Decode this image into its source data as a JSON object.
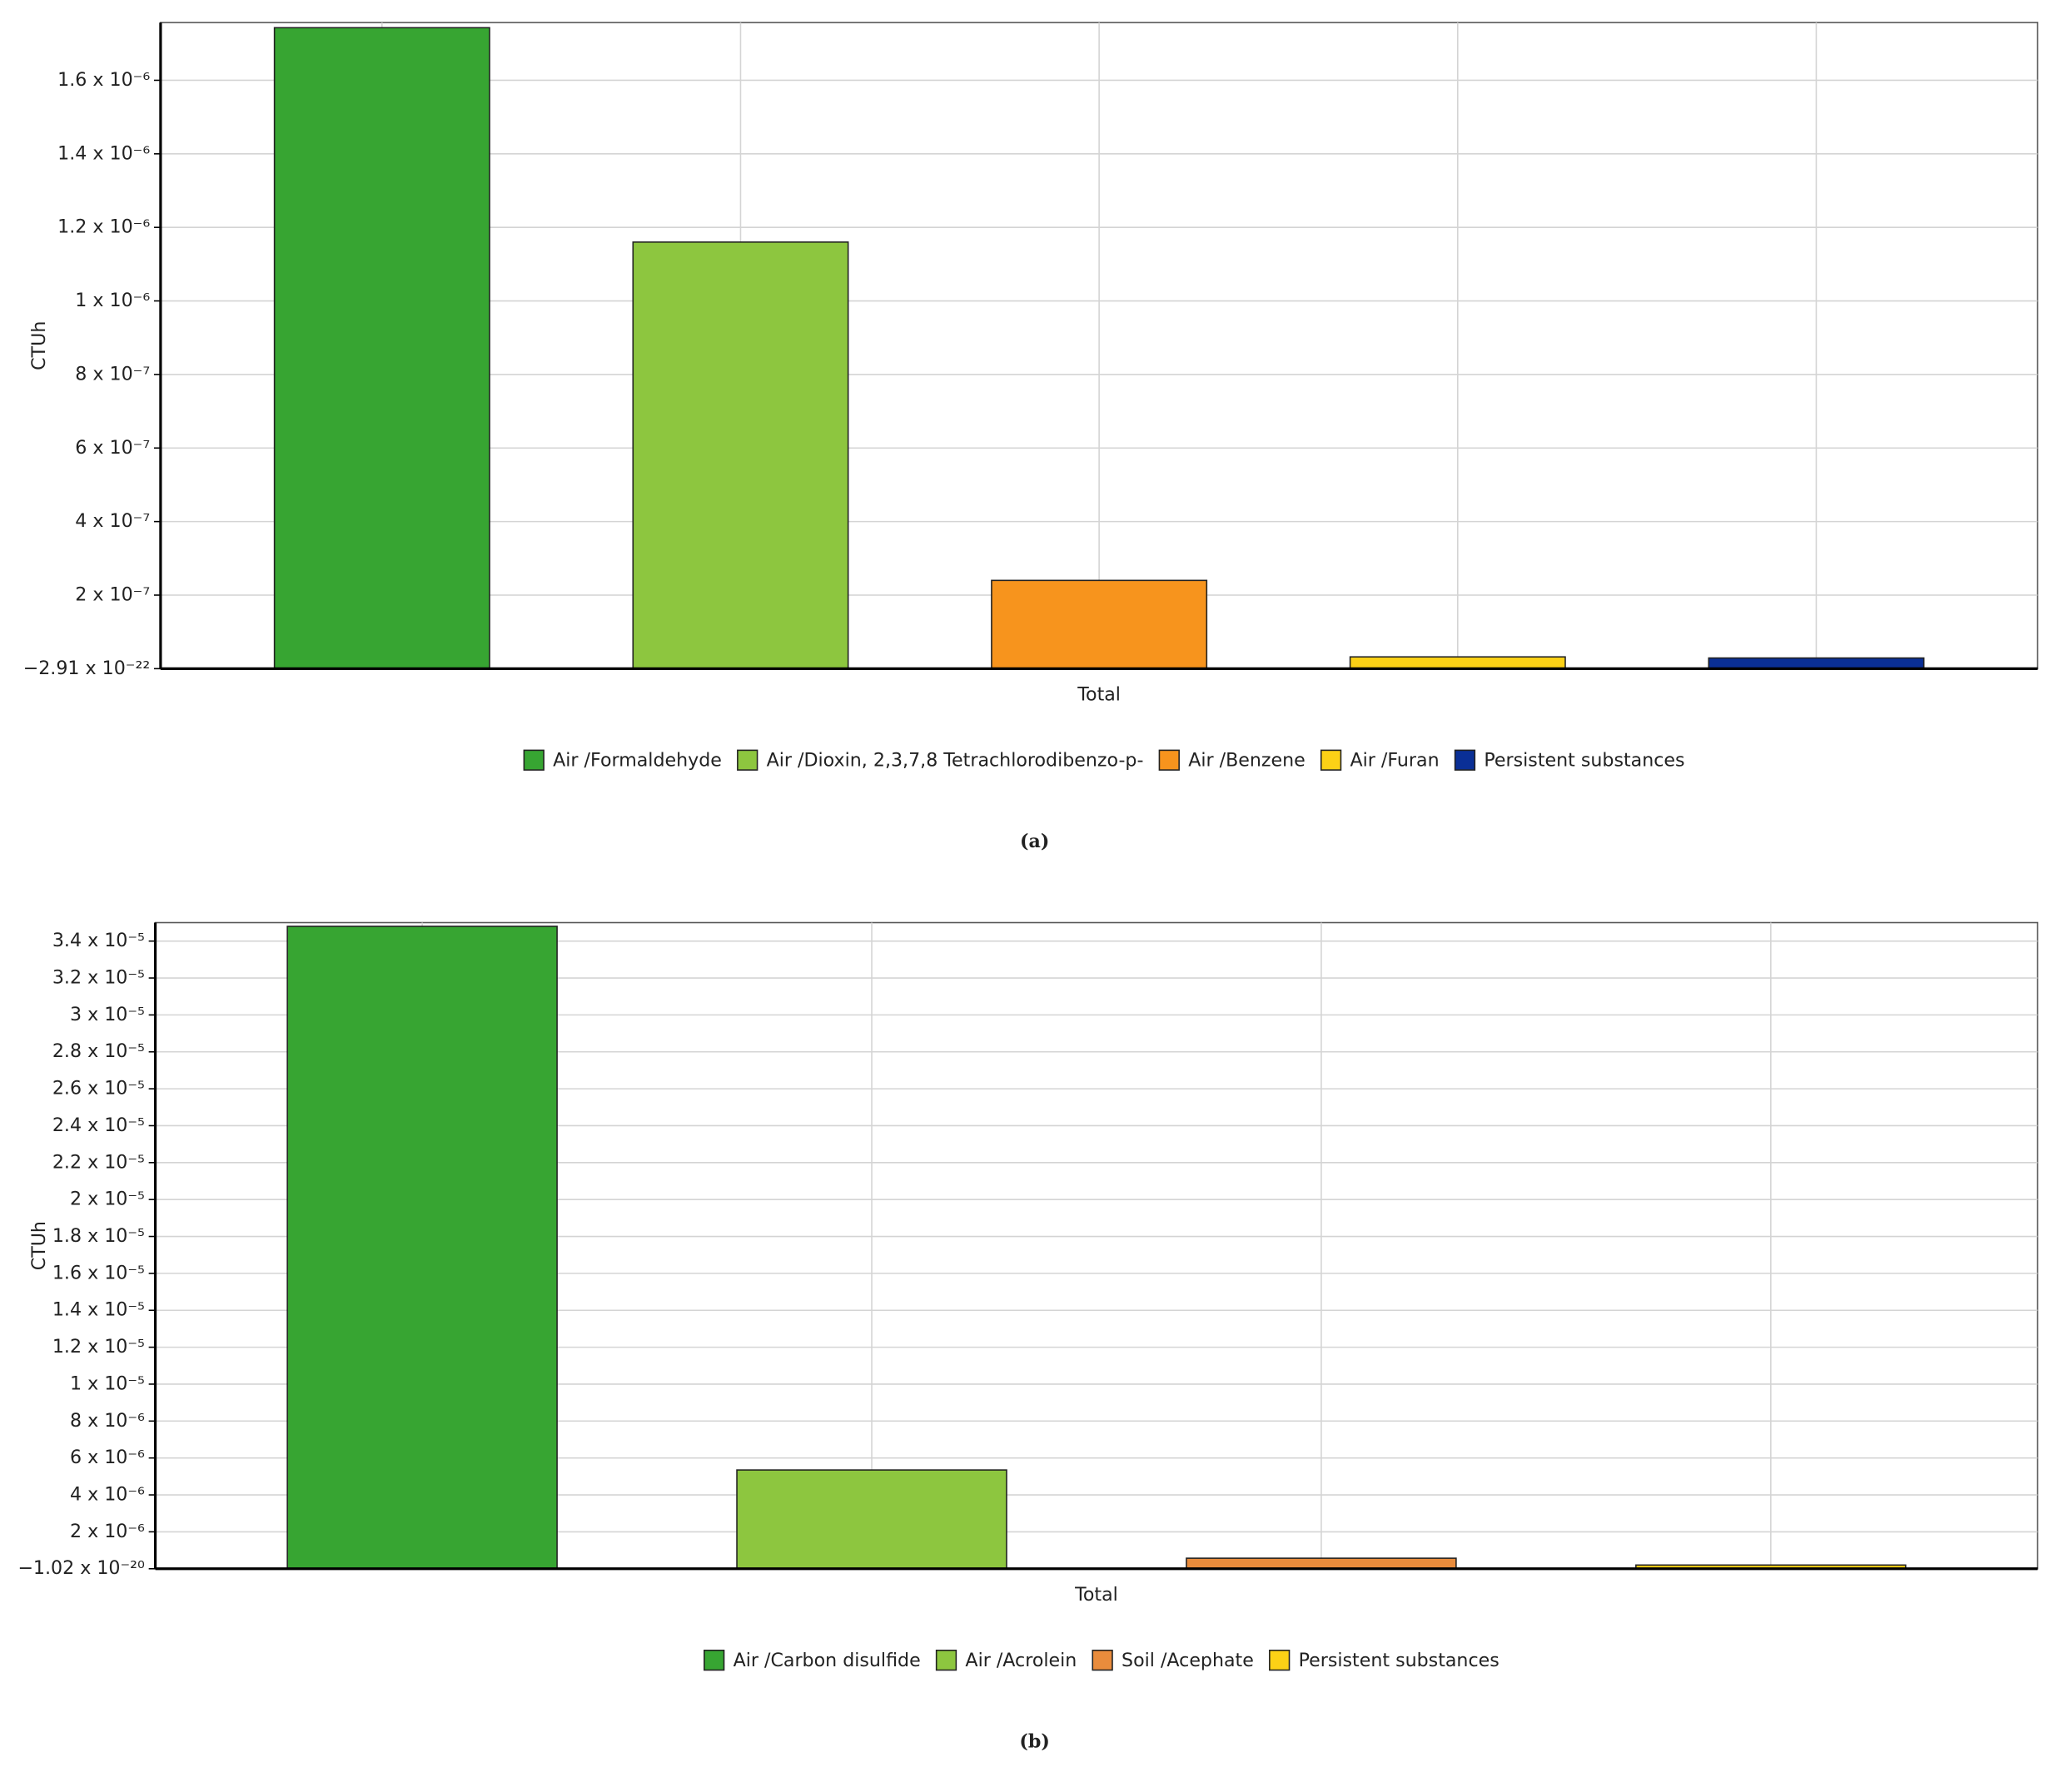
{
  "chart_data": [
    {
      "type": "bar",
      "panel_label": "(a)",
      "ylabel": "CTUh",
      "categories": [
        "Total"
      ],
      "ylim": [
        -2.91e-22,
        1.757e-06
      ],
      "yticks": [
        {
          "value": -2.91e-22,
          "label": "−2.91 x 10⁻²²"
        },
        {
          "value": 2e-07,
          "label": "2 x 10⁻⁷"
        },
        {
          "value": 4e-07,
          "label": "4 x 10⁻⁷"
        },
        {
          "value": 6e-07,
          "label": "6 x 10⁻⁷"
        },
        {
          "value": 8e-07,
          "label": "8 x 10⁻⁷"
        },
        {
          "value": 1e-06,
          "label": "1 x 10⁻⁶"
        },
        {
          "value": 1.2e-06,
          "label": "1.2 x 10⁻⁶"
        },
        {
          "value": 1.4e-06,
          "label": "1.4 x 10⁻⁶"
        },
        {
          "value": 1.6e-06,
          "label": "1.6 x 10⁻⁶"
        }
      ],
      "grid": true,
      "series": [
        {
          "name": "Air /Formaldehyde",
          "color": "#37a532",
          "values": [
            1.743e-06
          ]
        },
        {
          "name": "Air /Dioxin, 2,3,7,8 Tetrachlorodibenzo-p-",
          "color": "#8dc63f",
          "values": [
            1.16e-06
          ]
        },
        {
          "name": "Air /Benzene",
          "color": "#f7941d",
          "values": [
            2.4e-07
          ]
        },
        {
          "name": "Air /Furan",
          "color": "#fcd116",
          "values": [
            3.2e-08
          ]
        },
        {
          "name": "Persistent substances",
          "color": "#0a2f96",
          "values": [
            2.9e-08
          ]
        }
      ]
    },
    {
      "type": "bar",
      "panel_label": "(b)",
      "ylabel": "CTUh",
      "categories": [
        "Total"
      ],
      "ylim": [
        -1.02e-20,
        3.5e-05
      ],
      "yticks": [
        {
          "value": -1.02e-20,
          "label": "−1.02 x 10⁻²⁰"
        },
        {
          "value": 2e-06,
          "label": "2 x 10⁻⁶"
        },
        {
          "value": 4e-06,
          "label": "4 x 10⁻⁶"
        },
        {
          "value": 6e-06,
          "label": "6 x 10⁻⁶"
        },
        {
          "value": 8e-06,
          "label": "8 x 10⁻⁶"
        },
        {
          "value": 1e-05,
          "label": "1 x 10⁻⁵"
        },
        {
          "value": 1.2e-05,
          "label": "1.2 x 10⁻⁵"
        },
        {
          "value": 1.4e-05,
          "label": "1.4 x 10⁻⁵"
        },
        {
          "value": 1.6e-05,
          "label": "1.6 x 10⁻⁵"
        },
        {
          "value": 1.8e-05,
          "label": "1.8 x 10⁻⁵"
        },
        {
          "value": 2e-05,
          "label": "2 x 10⁻⁵"
        },
        {
          "value": 2.2e-05,
          "label": "2.2 x 10⁻⁵"
        },
        {
          "value": 2.4e-05,
          "label": "2.4 x 10⁻⁵"
        },
        {
          "value": 2.6e-05,
          "label": "2.6 x 10⁻⁵"
        },
        {
          "value": 2.8e-05,
          "label": "2.8 x 10⁻⁵"
        },
        {
          "value": 3e-05,
          "label": "3 x 10⁻⁵"
        },
        {
          "value": 3.2e-05,
          "label": "3.2 x 10⁻⁵"
        },
        {
          "value": 3.4e-05,
          "label": "3.4 x 10⁻⁵"
        }
      ],
      "grid": true,
      "series": [
        {
          "name": "Air /Carbon disulfide",
          "color": "#37a532",
          "values": [
            3.48e-05
          ]
        },
        {
          "name": "Air /Acrolein",
          "color": "#8dc63f",
          "values": [
            5.35e-06
          ]
        },
        {
          "name": "Soil /Acephate",
          "color": "#e98c3c",
          "values": [
            5.7e-07
          ]
        },
        {
          "name": "Persistent substances",
          "color": "#fcd116",
          "values": [
            2e-07
          ]
        }
      ]
    }
  ]
}
